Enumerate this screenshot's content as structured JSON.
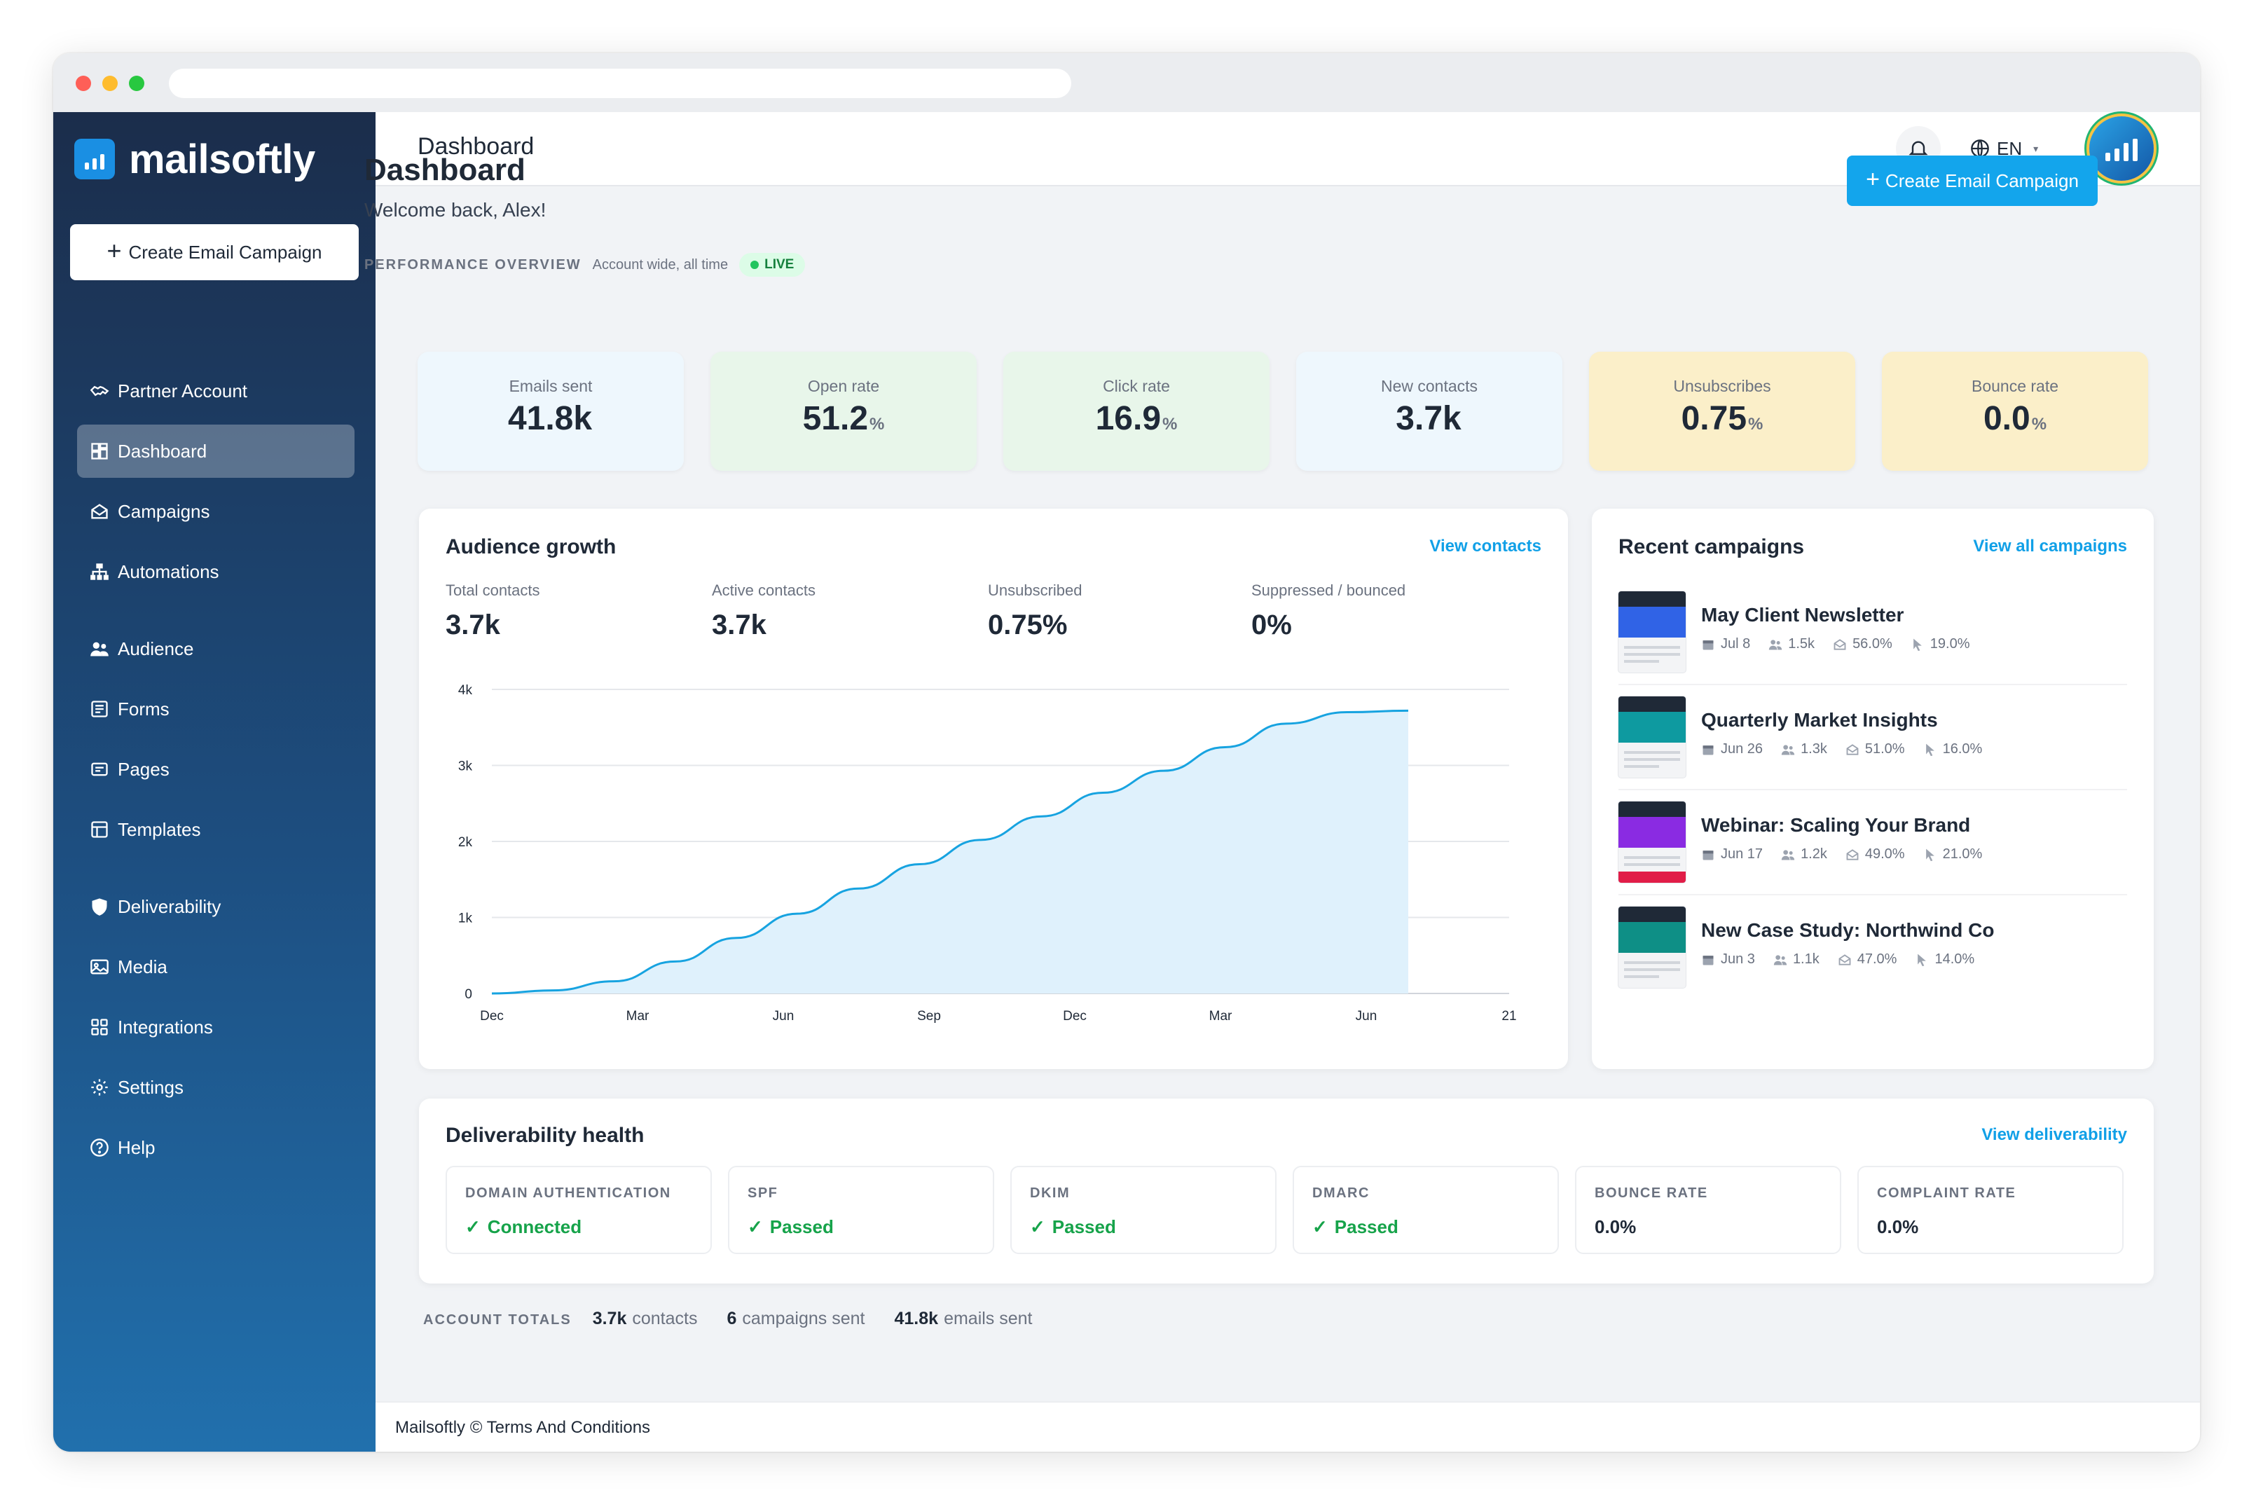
{
  "app": {
    "name": "mailsoftly"
  },
  "sidebar": {
    "create_label": "Create Email Campaign",
    "items": [
      {
        "label": "Partner Account",
        "icon": "handshake-icon"
      },
      {
        "label": "Dashboard",
        "icon": "dashboard-icon",
        "active": true
      },
      {
        "label": "Campaigns",
        "icon": "envelope-open-icon"
      },
      {
        "label": "Automations",
        "icon": "sitemap-icon"
      },
      {
        "label": "Audience",
        "icon": "users-icon"
      },
      {
        "label": "Forms",
        "icon": "form-icon"
      },
      {
        "label": "Pages",
        "icon": "page-icon"
      },
      {
        "label": "Templates",
        "icon": "template-icon"
      },
      {
        "label": "Deliverability",
        "icon": "shield-icon"
      },
      {
        "label": "Media",
        "icon": "image-icon"
      },
      {
        "label": "Integrations",
        "icon": "puzzle-icon"
      },
      {
        "label": "Settings",
        "icon": "gear-icon"
      },
      {
        "label": "Help",
        "icon": "help-circle-icon"
      }
    ]
  },
  "topbar": {
    "title": "Dashboard",
    "language": "EN"
  },
  "header": {
    "title": "Dashboard",
    "welcome": "Welcome back, Alex!",
    "create_label": "Create Email Campaign",
    "perf_label": "PERFORMANCE OVERVIEW",
    "perf_sub": "Account wide, all time",
    "live_label": "LIVE"
  },
  "stats": [
    {
      "label": "Emails sent",
      "value": "41.8k",
      "unit": "",
      "bg": "#eef7fd"
    },
    {
      "label": "Open rate",
      "value": "51.2",
      "unit": "%",
      "bg": "#e8f6ea"
    },
    {
      "label": "Click rate",
      "value": "16.9",
      "unit": "%",
      "bg": "#e8f6ea"
    },
    {
      "label": "New contacts",
      "value": "3.7k",
      "unit": "",
      "bg": "#eef7fd"
    },
    {
      "label": "Unsubscribes",
      "value": "0.75",
      "unit": "%",
      "bg": "#fbefc9"
    },
    {
      "label": "Bounce rate",
      "value": "0.0",
      "unit": "%",
      "bg": "#fbefc9"
    }
  ],
  "audience": {
    "title": "Audience growth",
    "link": "View contacts",
    "metrics": [
      {
        "label": "Total contacts",
        "value": "3.7k"
      },
      {
        "label": "Active contacts",
        "value": "3.7k"
      },
      {
        "label": "Unsubscribed",
        "value": "0.75%"
      },
      {
        "label": "Suppressed / bounced",
        "value": "0%"
      }
    ]
  },
  "chart_data": {
    "type": "area",
    "x_labels": [
      "Dec",
      "Mar",
      "Jun",
      "Sep",
      "Dec",
      "Mar",
      "Jun",
      "21"
    ],
    "y_ticks": [
      "0",
      "1k",
      "2k",
      "3k",
      "4k"
    ],
    "ylim": [
      0,
      4000
    ],
    "series": [
      {
        "values": [
          0,
          40,
          160,
          420,
          730,
          1050,
          1380,
          1700,
          2020,
          2330,
          2640,
          2930,
          3240,
          3550,
          3700,
          3720
        ]
      }
    ],
    "grid": true,
    "line_color": "#17a3e0",
    "fill_color": "#dff1fc"
  },
  "recent": {
    "title": "Recent campaigns",
    "link": "View all campaigns",
    "items": [
      {
        "name": "May Client Newsletter",
        "date": "Jul 8",
        "recipients": "1.5k",
        "open": "56.0%",
        "click": "19.0%",
        "thumb_color": "#3063e6"
      },
      {
        "name": "Quarterly Market Insights",
        "date": "Jun 26",
        "recipients": "1.3k",
        "open": "51.0%",
        "click": "16.0%",
        "thumb_color": "#0e9aa0"
      },
      {
        "name": "Webinar: Scaling Your Brand",
        "date": "Jun 17",
        "recipients": "1.2k",
        "open": "49.0%",
        "click": "21.0%",
        "thumb_color": "#8a2be2"
      },
      {
        "name": "New Case Study: Northwind Co",
        "date": "Jun 3",
        "recipients": "1.1k",
        "open": "47.0%",
        "click": "14.0%",
        "thumb_color": "#0e8f86"
      }
    ]
  },
  "deliverability": {
    "title": "Deliverability health",
    "link": "View deliverability",
    "items": [
      {
        "label": "DOMAIN AUTHENTICATION",
        "value": "Connected",
        "ok": true
      },
      {
        "label": "SPF",
        "value": "Passed",
        "ok": true
      },
      {
        "label": "DKIM",
        "value": "Passed",
        "ok": true
      },
      {
        "label": "DMARC",
        "value": "Passed",
        "ok": true
      },
      {
        "label": "BOUNCE RATE",
        "value": "0.0%",
        "ok": false
      },
      {
        "label": "COMPLAINT RATE",
        "value": "0.0%",
        "ok": false
      }
    ]
  },
  "totals": {
    "label": "ACCOUNT TOTALS",
    "contacts_value": "3.7k",
    "contacts_label": "contacts",
    "campaigns_value": "6",
    "campaigns_label": "campaigns sent",
    "emails_value": "41.8k",
    "emails_label": "emails sent"
  },
  "footer": {
    "text": "Mailsoftly © Terms And Conditions"
  }
}
